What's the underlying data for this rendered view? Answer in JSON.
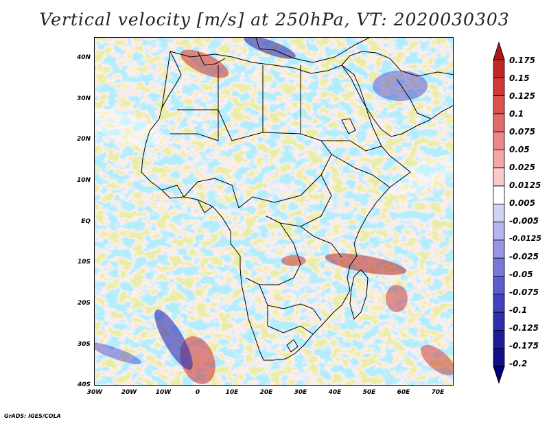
{
  "title": "Vertical velocity [m/s] at 250hPa, VT: 2020030303",
  "credit": "GrADS: IGES/COLA",
  "lat_labels": [
    "40N",
    "30N",
    "20N",
    "10N",
    "EQ",
    "10S",
    "20S",
    "30S",
    "40S"
  ],
  "lon_labels": [
    "30W",
    "20W",
    "10W",
    "0",
    "10E",
    "20E",
    "30E",
    "40E",
    "50E",
    "60E",
    "70E"
  ],
  "colorbar": {
    "labels": [
      "0.175",
      "0.15",
      "0.125",
      "0.1",
      "0.075",
      "0.05",
      "0.025",
      "0.0125",
      "0.005",
      "-0.005",
      "-0.0125",
      "-0.025",
      "-0.05",
      "-0.075",
      "-0.1",
      "-0.125",
      "-0.175",
      "-0.2"
    ],
    "colors": [
      "#b01818",
      "#c02828",
      "#d03838",
      "#dc5050",
      "#e46a6a",
      "#ec8888",
      "#f2a6a6",
      "#f8caca",
      "#ffffff",
      "#d2d2f6",
      "#b4b4ee",
      "#9696e4",
      "#7878da",
      "#5c5cce",
      "#4242c0",
      "#2e2eb0",
      "#1c1c9c",
      "#10108a",
      "#000080"
    ]
  },
  "colors": {
    "positive": "#c83030",
    "negative": "#3c3cc8",
    "background": "#ffffff"
  }
}
